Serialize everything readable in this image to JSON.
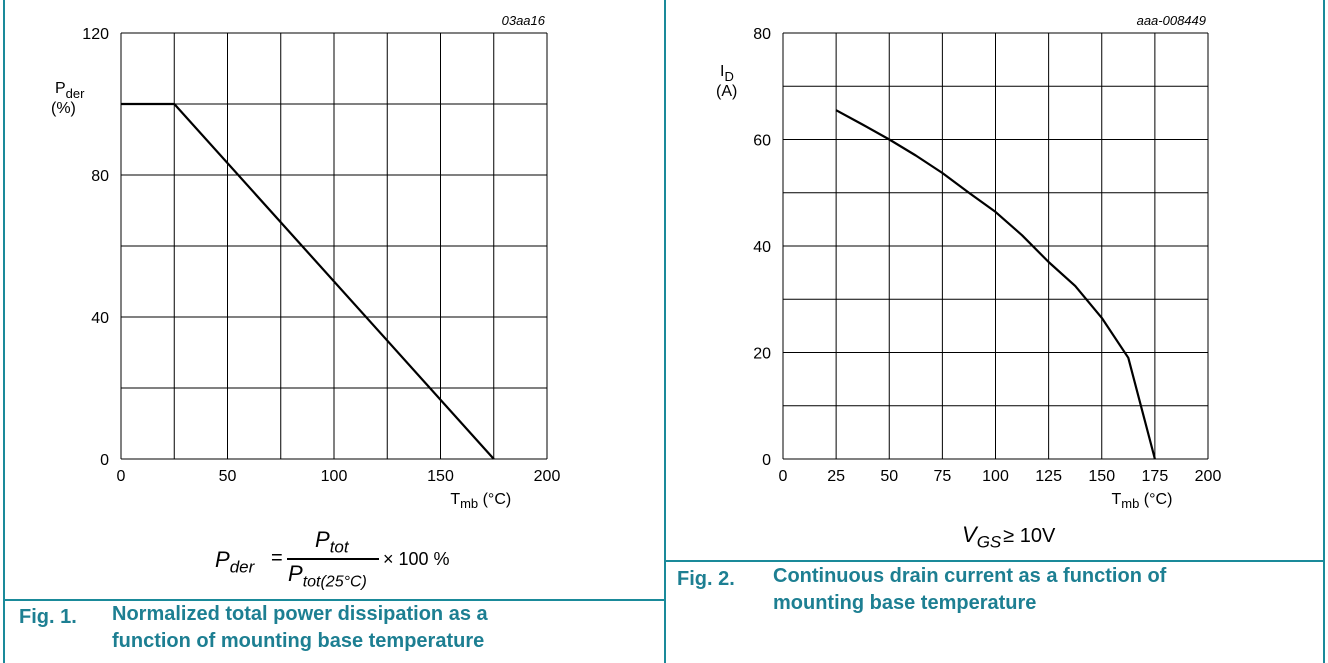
{
  "figures": [
    {
      "number": "Fig. 1.",
      "caption_line1": "Normalized total power dissipation as a",
      "caption_line2": "function of mounting base temperature",
      "code": "03aa16",
      "formula": {
        "lhs_main": "P",
        "lhs_sub": "der",
        "eq": "=",
        "num_main": "P",
        "num_sub": "tot",
        "den_main": "P",
        "den_sub": "tot(25°C)",
        "tail": "× 100 %"
      }
    },
    {
      "number": "Fig. 2.",
      "caption_line1": "Continuous drain current as a function of",
      "caption_line2": "mounting base temperature",
      "code": "aaa-008449",
      "condition": "V",
      "condition_sub": "GS",
      "condition_tail": "≥ 10V"
    }
  ],
  "chart_data": [
    {
      "type": "line",
      "title": "",
      "ylabel_main": "P",
      "ylabel_sub": "der",
      "ylabel_unit": "(%)",
      "xlabel_main": "T",
      "xlabel_sub": "mb",
      "xlabel_unit": "(°C)",
      "xlim": [
        0,
        200
      ],
      "ylim": [
        0,
        120
      ],
      "xticks": [
        0,
        50,
        100,
        150,
        200
      ],
      "yticks": [
        0,
        40,
        80,
        120
      ],
      "x_grid_step": 25,
      "y_grid_step": 20,
      "grid": true,
      "series": [
        {
          "x": [
            0,
            25,
            175
          ],
          "y": [
            100,
            100,
            0
          ]
        }
      ]
    },
    {
      "type": "line",
      "title": "",
      "ylabel_main": "I",
      "ylabel_sub": "D",
      "ylabel_unit": "(A)",
      "xlabel_main": "T",
      "xlabel_sub": "mb",
      "xlabel_unit": "(°C)",
      "xlim": [
        0,
        200
      ],
      "ylim": [
        0,
        80
      ],
      "xticks": [
        0,
        25,
        50,
        75,
        100,
        125,
        150,
        175,
        200
      ],
      "yticks": [
        0,
        20,
        40,
        60,
        80
      ],
      "x_grid_step": 25,
      "y_grid_step": 10,
      "grid": true,
      "series": [
        {
          "x": [
            25,
            37.5,
            50,
            62.5,
            75,
            87.5,
            100,
            112.5,
            125,
            137.5,
            150,
            162.5,
            175
          ],
          "y": [
            65.5,
            62.8,
            60,
            57,
            53.7,
            50,
            46.4,
            42,
            37,
            32.5,
            26.5,
            19,
            0
          ]
        }
      ]
    }
  ]
}
